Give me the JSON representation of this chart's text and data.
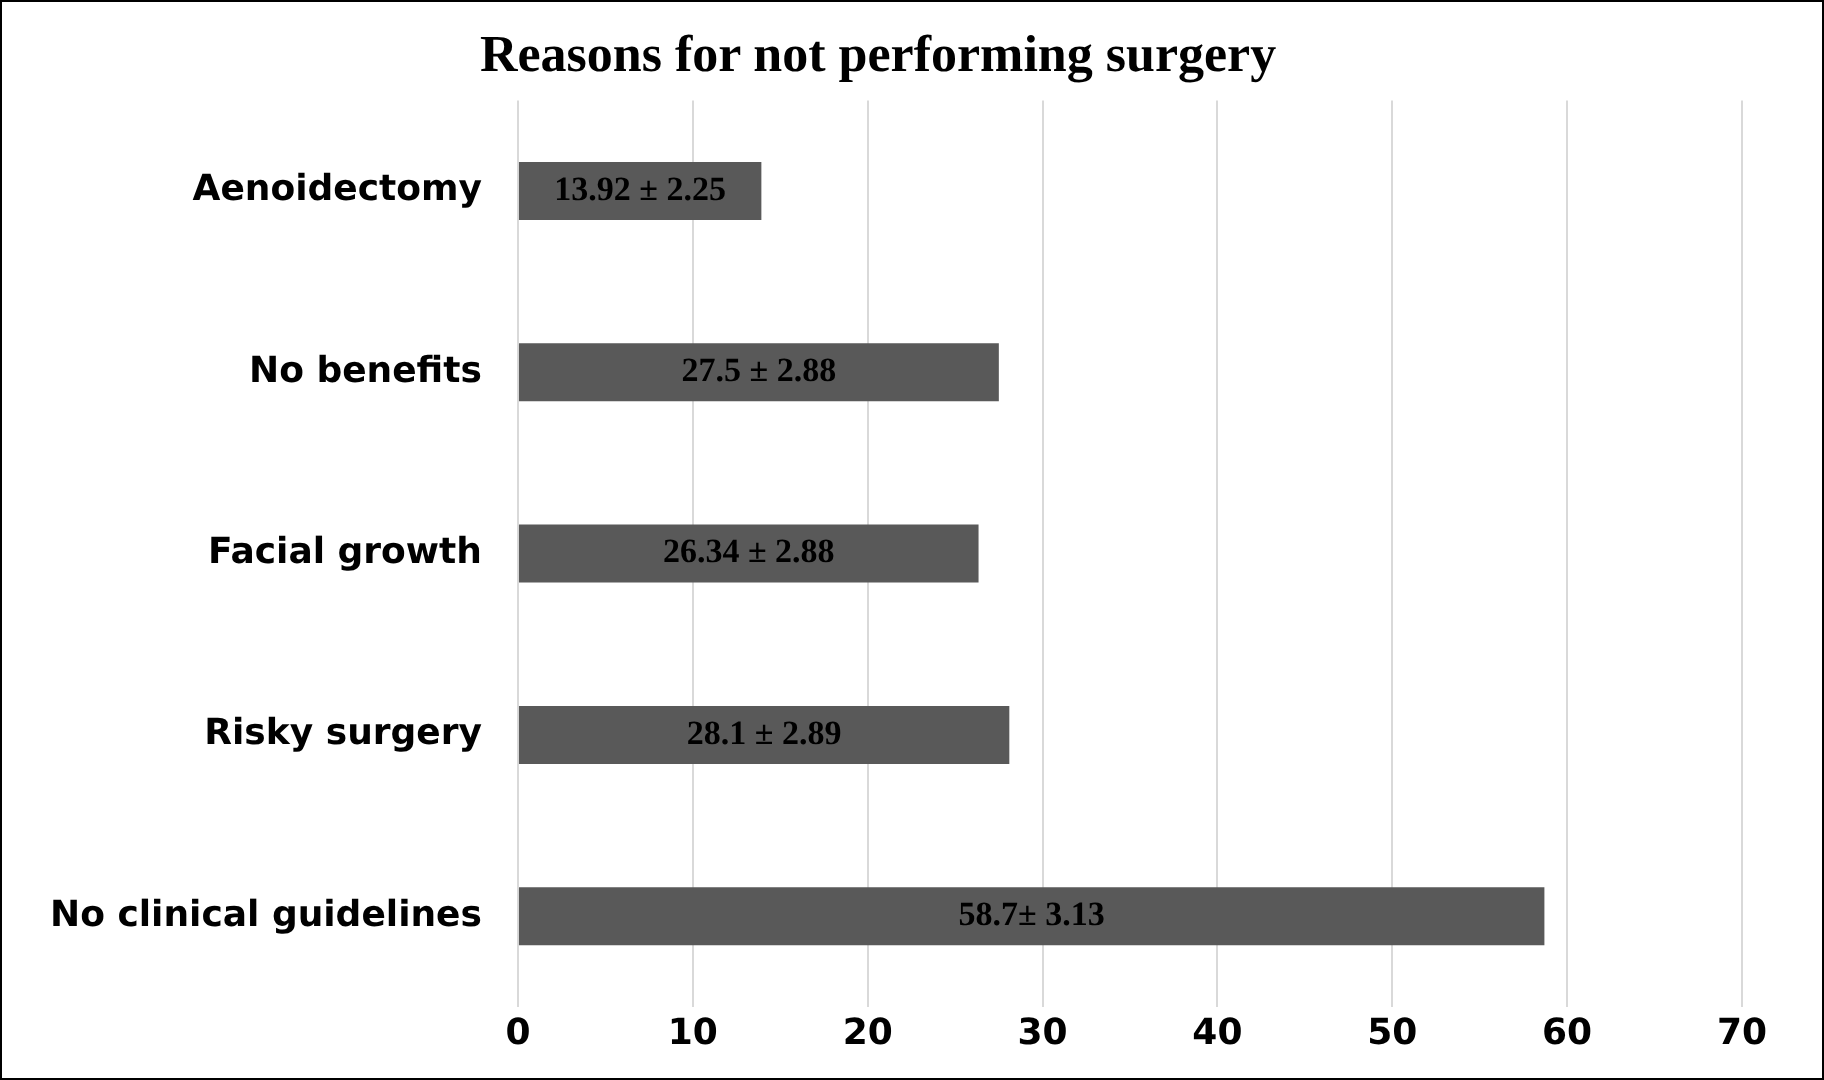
{
  "chart_data": {
    "type": "bar",
    "orientation": "horizontal",
    "title": "Reasons for not performing surgery",
    "categories": [
      "Aenoidectomy",
      "No benefits",
      "Facial growth",
      "Risky surgery",
      "No clinical guidelines"
    ],
    "values": [
      13.92,
      27.5,
      26.34,
      28.1,
      58.7
    ],
    "value_labels": [
      "13.92 ± 2.25",
      "27.5 ± 2.88",
      "26.34 ± 2.88",
      "28.1 ± 2.89",
      "58.7± 3.13"
    ],
    "color": "#595959",
    "xlim": [
      0,
      70
    ],
    "xticks": [
      0,
      10,
      20,
      30,
      40,
      50,
      60,
      70
    ],
    "grid": "x",
    "legend": false
  }
}
